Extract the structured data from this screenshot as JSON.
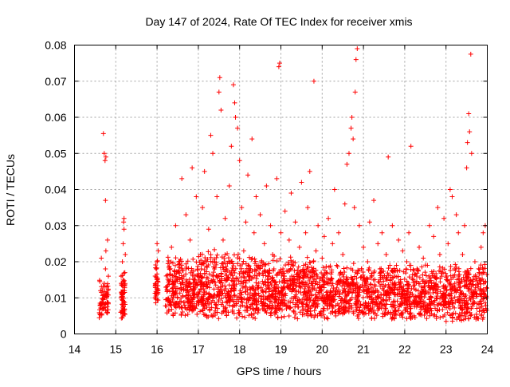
{
  "chart_data": {
    "type": "scatter",
    "title": "Day 147 of 2024, Rate Of TEC Index for receiver xmis",
    "xlabel": "GPS time / hours",
    "ylabel": "ROTI / TECUs",
    "xlim": [
      14,
      24
    ],
    "ylim": [
      0,
      0.08
    ],
    "x_ticks": [
      "14",
      "15",
      "16",
      "17",
      "18",
      "19",
      "20",
      "21",
      "22",
      "23",
      "24"
    ],
    "y_ticks": [
      "0",
      "0.01",
      "0.02",
      "0.03",
      "0.04",
      "0.05",
      "0.06",
      "0.07",
      "0.08"
    ],
    "grid": true,
    "marker": "+",
    "point_color": "#ff0000",
    "points": [
      [
        14.6,
        0.0045
      ],
      [
        14.62,
        0.0085
      ],
      [
        14.63,
        0.012
      ],
      [
        14.65,
        0.021
      ],
      [
        14.67,
        0.007
      ],
      [
        14.7,
        0.0095
      ],
      [
        14.72,
        0.014
      ],
      [
        14.73,
        0.01
      ],
      [
        14.75,
        0.018
      ],
      [
        14.76,
        0.023
      ],
      [
        14.78,
        0.013
      ],
      [
        14.8,
        0.026
      ],
      [
        14.82,
        0.016
      ],
      [
        14.7,
        0.0555
      ],
      [
        14.72,
        0.05
      ],
      [
        14.74,
        0.048
      ],
      [
        14.76,
        0.049
      ],
      [
        14.75,
        0.037
      ],
      [
        14.8,
        0.006
      ],
      [
        14.77,
        0.011
      ],
      [
        15.12,
        0.006
      ],
      [
        15.14,
        0.01
      ],
      [
        15.15,
        0.014
      ],
      [
        15.16,
        0.02
      ],
      [
        15.18,
        0.025
      ],
      [
        15.19,
        0.031
      ],
      [
        15.2,
        0.029
      ],
      [
        15.17,
        0.008
      ],
      [
        15.21,
        0.012
      ],
      [
        15.22,
        0.017
      ],
      [
        15.23,
        0.022
      ],
      [
        15.18,
        0.005
      ],
      [
        15.2,
        0.032
      ],
      [
        15.13,
        0.016
      ],
      [
        15.19,
        0.009
      ],
      [
        15.95,
        0.01
      ],
      [
        15.97,
        0.014
      ],
      [
        15.98,
        0.018
      ],
      [
        16.0,
        0.02
      ],
      [
        16.01,
        0.015
      ],
      [
        16.02,
        0.012
      ],
      [
        16.03,
        0.023
      ],
      [
        16.0,
        0.025
      ],
      [
        15.99,
        0.011
      ],
      [
        16.25,
        0.012
      ],
      [
        16.3,
        0.018
      ],
      [
        16.35,
        0.024
      ],
      [
        16.4,
        0.014
      ],
      [
        16.45,
        0.03
      ],
      [
        16.5,
        0.01
      ],
      [
        16.55,
        0.02
      ],
      [
        16.6,
        0.043
      ],
      [
        16.65,
        0.016
      ],
      [
        16.7,
        0.033
      ],
      [
        16.75,
        0.009
      ],
      [
        16.8,
        0.026
      ],
      [
        16.85,
        0.046
      ],
      [
        16.9,
        0.015
      ],
      [
        16.95,
        0.038
      ],
      [
        17.0,
        0.011
      ],
      [
        17.05,
        0.022
      ],
      [
        17.1,
        0.035
      ],
      [
        17.15,
        0.045
      ],
      [
        17.2,
        0.013
      ],
      [
        17.25,
        0.029
      ],
      [
        17.3,
        0.055
      ],
      [
        17.35,
        0.05
      ],
      [
        17.4,
        0.02
      ],
      [
        17.45,
        0.038
      ],
      [
        17.5,
        0.067
      ],
      [
        17.52,
        0.071
      ],
      [
        17.55,
        0.062
      ],
      [
        17.6,
        0.026
      ],
      [
        17.65,
        0.032
      ],
      [
        17.7,
        0.015
      ],
      [
        17.75,
        0.041
      ],
      [
        17.8,
        0.052
      ],
      [
        17.85,
        0.069
      ],
      [
        17.88,
        0.064
      ],
      [
        17.9,
        0.06
      ],
      [
        17.95,
        0.057
      ],
      [
        18.0,
        0.048
      ],
      [
        18.05,
        0.035
      ],
      [
        18.1,
        0.023
      ],
      [
        18.15,
        0.031
      ],
      [
        18.2,
        0.044
      ],
      [
        18.25,
        0.017
      ],
      [
        18.3,
        0.054
      ],
      [
        18.35,
        0.028
      ],
      [
        18.4,
        0.038
      ],
      [
        18.45,
        0.019
      ],
      [
        18.5,
        0.033
      ],
      [
        18.55,
        0.012
      ],
      [
        18.6,
        0.025
      ],
      [
        18.65,
        0.041
      ],
      [
        18.7,
        0.016
      ],
      [
        18.75,
        0.03
      ],
      [
        18.8,
        0.022
      ],
      [
        18.9,
        0.043
      ],
      [
        18.95,
        0.074
      ],
      [
        18.97,
        0.075
      ],
      [
        19.0,
        0.028
      ],
      [
        19.05,
        0.018
      ],
      [
        19.1,
        0.034
      ],
      [
        19.15,
        0.014
      ],
      [
        19.2,
        0.026
      ],
      [
        19.25,
        0.039
      ],
      [
        19.3,
        0.02
      ],
      [
        19.35,
        0.031
      ],
      [
        19.4,
        0.015
      ],
      [
        19.45,
        0.024
      ],
      [
        19.5,
        0.042
      ],
      [
        19.55,
        0.019
      ],
      [
        19.6,
        0.028
      ],
      [
        19.65,
        0.035
      ],
      [
        19.7,
        0.045
      ],
      [
        19.75,
        0.016
      ],
      [
        19.8,
        0.07
      ],
      [
        19.85,
        0.023
      ],
      [
        19.9,
        0.03
      ],
      [
        19.95,
        0.013
      ],
      [
        20.0,
        0.021
      ],
      [
        20.05,
        0.027
      ],
      [
        20.1,
        0.017
      ],
      [
        20.15,
        0.032
      ],
      [
        20.2,
        0.012
      ],
      [
        20.25,
        0.025
      ],
      [
        20.3,
        0.04
      ],
      [
        20.35,
        0.019
      ],
      [
        20.4,
        0.028
      ],
      [
        20.45,
        0.015
      ],
      [
        20.5,
        0.022
      ],
      [
        20.55,
        0.036
      ],
      [
        20.6,
        0.047
      ],
      [
        20.65,
        0.05
      ],
      [
        20.7,
        0.057
      ],
      [
        20.72,
        0.06
      ],
      [
        20.75,
        0.054
      ],
      [
        20.8,
        0.067
      ],
      [
        20.82,
        0.076
      ],
      [
        20.85,
        0.079
      ],
      [
        20.78,
        0.035
      ],
      [
        20.9,
        0.03
      ],
      [
        20.95,
        0.018
      ],
      [
        21.0,
        0.024
      ],
      [
        21.05,
        0.014
      ],
      [
        21.1,
        0.02
      ],
      [
        21.15,
        0.031
      ],
      [
        21.2,
        0.016
      ],
      [
        21.25,
        0.037
      ],
      [
        21.3,
        0.012
      ],
      [
        21.35,
        0.025
      ],
      [
        21.4,
        0.018
      ],
      [
        21.45,
        0.028
      ],
      [
        21.5,
        0.013
      ],
      [
        21.55,
        0.022
      ],
      [
        21.6,
        0.049
      ],
      [
        21.65,
        0.015
      ],
      [
        21.7,
        0.03
      ],
      [
        21.75,
        0.011
      ],
      [
        21.8,
        0.019
      ],
      [
        21.85,
        0.026
      ],
      [
        21.9,
        0.014
      ],
      [
        21.95,
        0.023
      ],
      [
        22.0,
        0.012
      ],
      [
        22.05,
        0.02
      ],
      [
        22.1,
        0.028
      ],
      [
        22.15,
        0.052
      ],
      [
        22.2,
        0.015
      ],
      [
        22.25,
        0.01
      ],
      [
        22.3,
        0.018
      ],
      [
        22.35,
        0.024
      ],
      [
        22.4,
        0.013
      ],
      [
        22.45,
        0.021
      ],
      [
        22.5,
        0.011
      ],
      [
        22.55,
        0.019
      ],
      [
        22.6,
        0.03
      ],
      [
        22.65,
        0.014
      ],
      [
        22.7,
        0.027
      ],
      [
        22.75,
        0.012
      ],
      [
        22.8,
        0.035
      ],
      [
        22.85,
        0.022
      ],
      [
        22.9,
        0.016
      ],
      [
        22.95,
        0.032
      ],
      [
        23.0,
        0.013
      ],
      [
        23.05,
        0.025
      ],
      [
        23.1,
        0.04
      ],
      [
        23.15,
        0.038
      ],
      [
        23.2,
        0.018
      ],
      [
        23.25,
        0.033
      ],
      [
        23.3,
        0.028
      ],
      [
        23.35,
        0.014
      ],
      [
        23.4,
        0.022
      ],
      [
        23.45,
        0.03
      ],
      [
        23.5,
        0.046
      ],
      [
        23.52,
        0.053
      ],
      [
        23.55,
        0.061
      ],
      [
        23.57,
        0.056
      ],
      [
        23.6,
        0.0775
      ],
      [
        23.62,
        0.05
      ],
      [
        23.65,
        0.015
      ],
      [
        23.7,
        0.02
      ],
      [
        23.75,
        0.011
      ],
      [
        23.8,
        0.017
      ],
      [
        23.85,
        0.024
      ],
      [
        23.9,
        0.028
      ],
      [
        23.95,
        0.03
      ],
      [
        23.98,
        0.01
      ]
    ],
    "band_regions": [
      {
        "x": [
          14.6,
          14.82
        ],
        "y": [
          0.004,
          0.016
        ],
        "count": 55
      },
      {
        "x": [
          15.12,
          15.23
        ],
        "y": [
          0.004,
          0.018
        ],
        "count": 55
      },
      {
        "x": [
          15.95,
          16.03
        ],
        "y": [
          0.008,
          0.022
        ],
        "count": 35
      },
      {
        "x": [
          16.2,
          17.0
        ],
        "y": [
          0.005,
          0.022
        ],
        "count": 260
      },
      {
        "x": [
          17.0,
          18.0
        ],
        "y": [
          0.004,
          0.024
        ],
        "count": 320
      },
      {
        "x": [
          18.0,
          19.0
        ],
        "y": [
          0.004,
          0.022
        ],
        "count": 320
      },
      {
        "x": [
          19.0,
          20.0
        ],
        "y": [
          0.004,
          0.022
        ],
        "count": 320
      },
      {
        "x": [
          20.0,
          21.0
        ],
        "y": [
          0.004,
          0.02
        ],
        "count": 300
      },
      {
        "x": [
          21.0,
          22.0
        ],
        "y": [
          0.004,
          0.02
        ],
        "count": 300
      },
      {
        "x": [
          22.0,
          23.0
        ],
        "y": [
          0.004,
          0.02
        ],
        "count": 300
      },
      {
        "x": [
          23.0,
          24.0
        ],
        "y": [
          0.003,
          0.02
        ],
        "count": 300
      }
    ]
  }
}
